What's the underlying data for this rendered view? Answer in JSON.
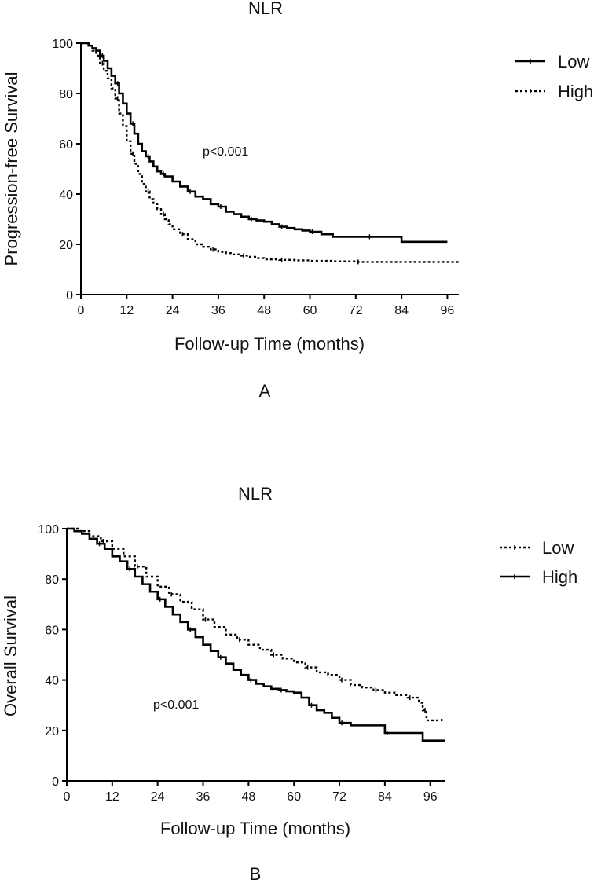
{
  "chart_data": [
    {
      "type": "line",
      "subtype": "kaplan-meier",
      "title": "NLR",
      "panel_label": "A",
      "xlabel": "Follow-up Time (months)",
      "ylabel": "Progression-free Survival",
      "xlim": [
        0,
        99
      ],
      "ylim": [
        0,
        100
      ],
      "xticks": [
        0,
        12,
        24,
        36,
        48,
        60,
        72,
        84,
        96
      ],
      "yticks": [
        0,
        20,
        40,
        60,
        80,
        100
      ],
      "annotation": "p<0.001",
      "legend_position": "top-right",
      "series": [
        {
          "name": "Low",
          "style": "solid",
          "x": [
            0,
            2,
            3,
            4,
            5,
            6,
            7,
            8,
            9,
            10,
            11,
            12,
            13,
            14,
            15,
            16,
            17,
            18,
            19,
            20,
            21,
            22,
            24,
            26,
            28,
            30,
            32,
            34,
            36,
            38,
            40,
            42,
            44,
            46,
            48,
            50,
            52,
            54,
            56,
            58,
            60,
            63,
            66,
            70,
            75,
            80,
            84,
            90,
            96
          ],
          "y": [
            100,
            99,
            98,
            97,
            95,
            93,
            90,
            87,
            84,
            80,
            76,
            72,
            68,
            64,
            60,
            57,
            55,
            53,
            51,
            49,
            48,
            47,
            45,
            43,
            41,
            39,
            38,
            36,
            35,
            33,
            32,
            31,
            30,
            29.5,
            29,
            28,
            27,
            26.5,
            26,
            25.5,
            25,
            24,
            23,
            23,
            23,
            23,
            21,
            21,
            21
          ]
        },
        {
          "name": "High",
          "style": "dotted",
          "x": [
            0,
            2,
            3,
            4,
            5,
            6,
            7,
            8,
            9,
            10,
            11,
            12,
            13,
            14,
            15,
            16,
            17,
            18,
            19,
            20,
            21,
            22,
            23,
            24,
            26,
            28,
            30,
            32,
            34,
            36,
            38,
            40,
            42,
            44,
            46,
            48,
            52,
            56,
            60,
            66,
            72,
            80,
            88,
            96,
            99
          ],
          "y": [
            100,
            99,
            97,
            95,
            92,
            89,
            86,
            82,
            78,
            72,
            67,
            61,
            56,
            52,
            48,
            44,
            41,
            38,
            36,
            34,
            32,
            30,
            28,
            26,
            24,
            22,
            20,
            19,
            18,
            17,
            16.5,
            16,
            15.5,
            15,
            14.5,
            14,
            13.8,
            13.6,
            13.4,
            13.2,
            13,
            13,
            13,
            13,
            13
          ]
        }
      ]
    },
    {
      "type": "line",
      "subtype": "kaplan-meier",
      "title": "NLR",
      "panel_label": "B",
      "xlabel": "Follow-up Time (months)",
      "ylabel": "Overall Survival",
      "xlim": [
        0,
        100
      ],
      "ylim": [
        0,
        100
      ],
      "xticks": [
        0,
        12,
        24,
        36,
        48,
        60,
        72,
        84,
        96
      ],
      "yticks": [
        0,
        20,
        40,
        60,
        80,
        100
      ],
      "annotation": "p<0.001",
      "legend_position": "top-right",
      "series": [
        {
          "name": "Low",
          "style": "dotted",
          "x": [
            0,
            3,
            6,
            9,
            12,
            15,
            18,
            21,
            24,
            27,
            30,
            33,
            36,
            39,
            42,
            45,
            48,
            51,
            54,
            57,
            60,
            63,
            66,
            69,
            72,
            75,
            78,
            81,
            84,
            87,
            90,
            92,
            93,
            94,
            95,
            97,
            99
          ],
          "y": [
            100,
            99,
            97,
            95,
            92,
            89,
            85,
            81,
            77,
            74,
            71,
            68,
            64,
            61,
            58,
            56,
            54,
            52,
            50,
            48.5,
            47,
            45,
            43,
            42,
            40,
            38,
            37,
            36,
            35,
            34,
            33,
            33,
            31,
            28,
            24,
            24,
            25
          ]
        },
        {
          "name": "High",
          "style": "solid",
          "x": [
            0,
            2,
            4,
            6,
            8,
            10,
            12,
            14,
            16,
            18,
            20,
            22,
            24,
            26,
            28,
            30,
            32,
            34,
            36,
            38,
            40,
            42,
            44,
            46,
            48,
            50,
            52,
            54,
            56,
            58,
            60,
            62,
            64,
            66,
            68,
            70,
            72,
            75,
            78,
            81,
            84,
            90,
            94,
            100
          ],
          "y": [
            100,
            99,
            98,
            96,
            94,
            92,
            89,
            87,
            84,
            81,
            78,
            75,
            72,
            69,
            66,
            63,
            60,
            57,
            54,
            51.5,
            49,
            46.5,
            44,
            42,
            40,
            38.5,
            37.5,
            36.5,
            36,
            35.5,
            35,
            33,
            30,
            28,
            27,
            25,
            23,
            22,
            22,
            22,
            19,
            19,
            16,
            16
          ]
        }
      ]
    }
  ]
}
